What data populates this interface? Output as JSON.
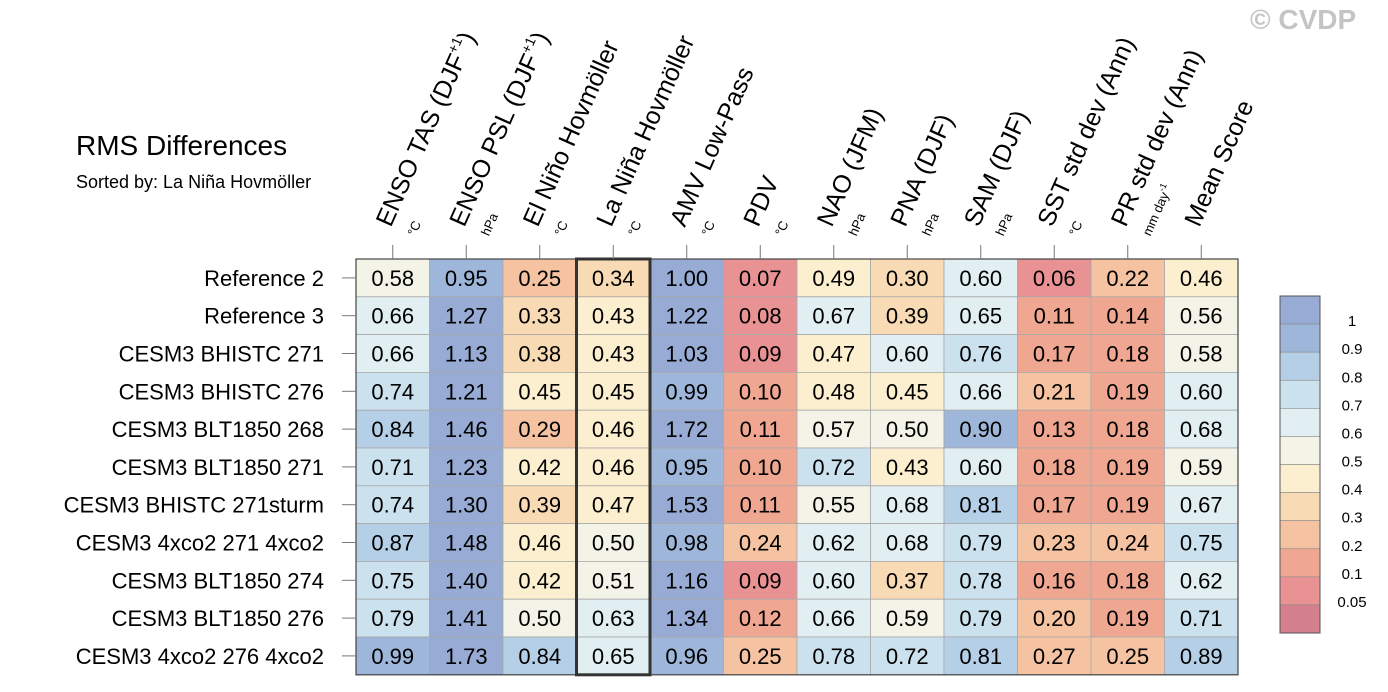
{
  "watermark": "© CVDP",
  "chart_data": {
    "type": "heatmap",
    "title": "RMS Differences",
    "subtitle": "Sorted by: La Niña Hovmöller",
    "columns": [
      {
        "name": "ENSO TAS (DJF",
        "sup": "+1",
        "close": ")",
        "unit": "°C",
        "unit_sup": ""
      },
      {
        "name": "ENSO PSL (DJF",
        "sup": "+1",
        "close": ")",
        "unit": "hPa",
        "unit_sup": ""
      },
      {
        "name": "El Niño Hovmöller",
        "sup": "",
        "close": "",
        "unit": "°C",
        "unit_sup": ""
      },
      {
        "name": "La Niña Hovmöller",
        "sup": "",
        "close": "",
        "unit": "°C",
        "unit_sup": ""
      },
      {
        "name": "AMV Low-Pass",
        "sup": "",
        "close": "",
        "unit": "°C",
        "unit_sup": ""
      },
      {
        "name": "PDV",
        "sup": "",
        "close": "",
        "unit": "°C",
        "unit_sup": ""
      },
      {
        "name": "NAO (JFM)",
        "sup": "",
        "close": "",
        "unit": "hPa",
        "unit_sup": ""
      },
      {
        "name": "PNA (DJF)",
        "sup": "",
        "close": "",
        "unit": "hPa",
        "unit_sup": ""
      },
      {
        "name": "SAM (DJF)",
        "sup": "",
        "close": "",
        "unit": "hPa",
        "unit_sup": ""
      },
      {
        "name": "SST std dev (Ann)",
        "sup": "",
        "close": "",
        "unit": "°C",
        "unit_sup": ""
      },
      {
        "name": "PR std dev (Ann)",
        "sup": "",
        "close": "",
        "unit": "mm day",
        "unit_sup": "-1"
      },
      {
        "name": "Mean Score",
        "sup": "",
        "close": "",
        "unit": "",
        "unit_sup": ""
      }
    ],
    "highlighted_column": "La Niña Hovmöller",
    "rows": [
      {
        "label": "Reference 2",
        "values": [
          0.58,
          0.95,
          0.25,
          0.34,
          1.0,
          0.07,
          0.49,
          0.3,
          0.6,
          0.06,
          0.22,
          0.46
        ]
      },
      {
        "label": "Reference 3",
        "values": [
          0.66,
          1.27,
          0.33,
          0.43,
          1.22,
          0.08,
          0.67,
          0.39,
          0.65,
          0.11,
          0.14,
          0.56
        ]
      },
      {
        "label": "CESM3 BHISTC 271",
        "values": [
          0.66,
          1.13,
          0.38,
          0.43,
          1.03,
          0.09,
          0.47,
          0.6,
          0.76,
          0.17,
          0.18,
          0.58
        ]
      },
      {
        "label": "CESM3 BHISTC 276",
        "values": [
          0.74,
          1.21,
          0.45,
          0.45,
          0.99,
          0.1,
          0.48,
          0.45,
          0.66,
          0.21,
          0.19,
          0.6
        ]
      },
      {
        "label": "CESM3 BLT1850 268",
        "values": [
          0.84,
          1.46,
          0.29,
          0.46,
          1.72,
          0.11,
          0.57,
          0.5,
          0.9,
          0.13,
          0.18,
          0.68
        ]
      },
      {
        "label": "CESM3 BLT1850 271",
        "values": [
          0.71,
          1.23,
          0.42,
          0.46,
          0.95,
          0.1,
          0.72,
          0.43,
          0.6,
          0.18,
          0.19,
          0.59
        ]
      },
      {
        "label": "CESM3 BHISTC 271sturm",
        "values": [
          0.74,
          1.3,
          0.39,
          0.47,
          1.53,
          0.11,
          0.55,
          0.68,
          0.81,
          0.17,
          0.19,
          0.67
        ]
      },
      {
        "label": "CESM3 4xco2 271 4xco2",
        "values": [
          0.87,
          1.48,
          0.46,
          0.5,
          0.98,
          0.24,
          0.62,
          0.68,
          0.79,
          0.23,
          0.24,
          0.75
        ]
      },
      {
        "label": "CESM3 BLT1850 274",
        "values": [
          0.75,
          1.4,
          0.42,
          0.51,
          1.16,
          0.09,
          0.6,
          0.37,
          0.78,
          0.16,
          0.18,
          0.62
        ]
      },
      {
        "label": "CESM3 BLT1850 276",
        "values": [
          0.79,
          1.41,
          0.5,
          0.63,
          1.34,
          0.12,
          0.66,
          0.59,
          0.79,
          0.2,
          0.19,
          0.71
        ]
      },
      {
        "label": "CESM3 4xco2 276 4xco2",
        "values": [
          0.99,
          1.73,
          0.84,
          0.65,
          0.96,
          0.25,
          0.78,
          0.72,
          0.81,
          0.27,
          0.25,
          0.89
        ]
      }
    ],
    "colorbar": {
      "labels": [
        "1",
        "0.9",
        "0.8",
        "0.7",
        "0.6",
        "0.5",
        "0.4",
        "0.3",
        "0.2",
        "0.1",
        "0.05"
      ],
      "thresholds": [
        0.05,
        0.1,
        0.2,
        0.3,
        0.4,
        0.5,
        0.6,
        0.7,
        0.8,
        0.9,
        1
      ],
      "colors": [
        "#d47f8c",
        "#e99293",
        "#f0a791",
        "#f5c3a2",
        "#f8dab5",
        "#fcefcf",
        "#f3f3e8",
        "#e1eff3",
        "#cbe2ee",
        "#b4cfe6",
        "#9eb6da",
        "#97abd4"
      ]
    }
  }
}
